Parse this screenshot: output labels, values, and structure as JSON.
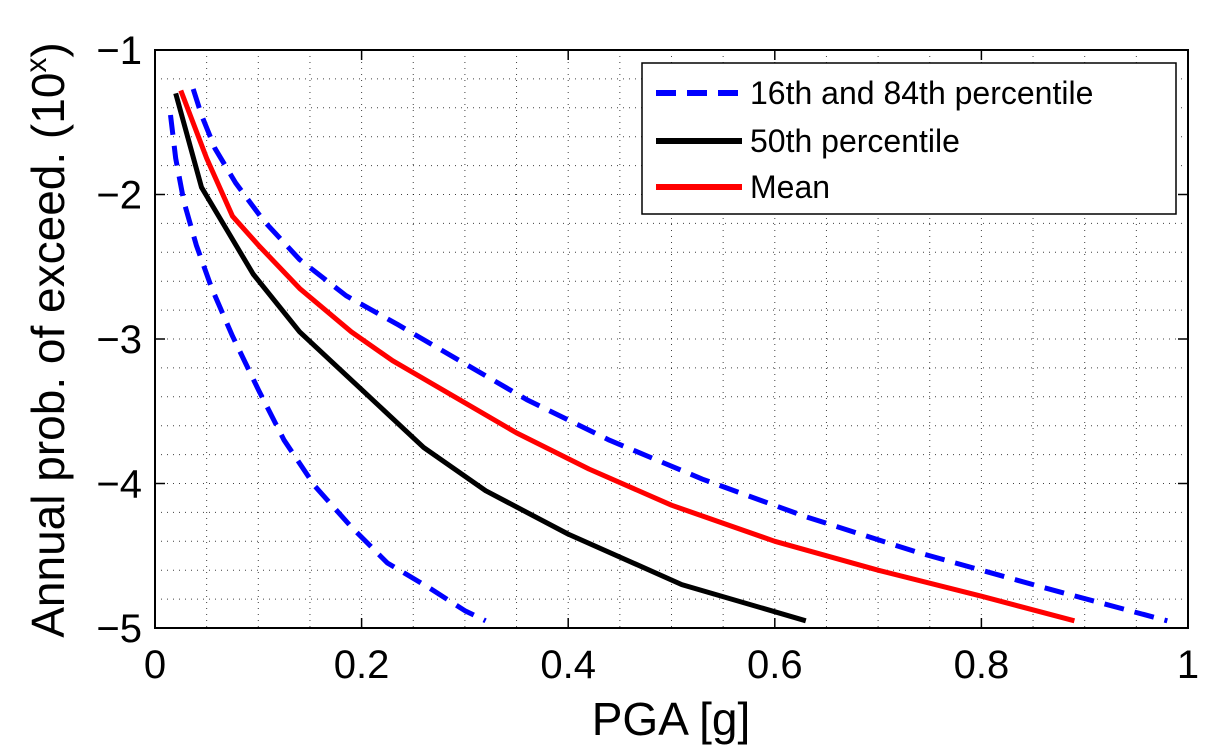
{
  "chart_data": {
    "type": "line",
    "title": "",
    "xlabel": "PGA [g]",
    "ylabel": "Annual prob. of exceed. (10",
    "ylabel_exponent": "x",
    "ylabel_close": ")",
    "xlim": [
      0,
      1
    ],
    "ylim": [
      -5,
      -1
    ],
    "xticks": [
      0,
      0.2,
      0.4,
      0.6,
      0.8,
      1
    ],
    "xtick_labels": [
      "0",
      "0.2",
      "0.4",
      "0.6",
      "0.8",
      "1"
    ],
    "yticks": [
      -5,
      -4,
      -3,
      -2,
      -1
    ],
    "ytick_labels": [
      "−5",
      "−4",
      "−3",
      "−2",
      "−1"
    ],
    "grid": "dotted major and minor",
    "legend_position": "top-right",
    "legend": [
      {
        "label": "16th and 84th percentile",
        "color": "#0000ff",
        "style": "dashed"
      },
      {
        "label": "50th percentile",
        "color": "#000000",
        "style": "solid"
      },
      {
        "label": "Mean",
        "color": "#ff0000",
        "style": "solid"
      }
    ],
    "series": [
      {
        "legend_index": 0,
        "color": "#0000ff",
        "style": "dashed",
        "x": [
          0.037,
          0.045,
          0.058,
          0.078,
          0.105,
          0.14,
          0.185,
          0.235,
          0.295,
          0.36,
          0.44,
          0.53,
          0.63,
          0.74,
          0.86,
          0.98
        ],
        "y": [
          -1.27,
          -1.45,
          -1.68,
          -1.92,
          -2.18,
          -2.45,
          -2.7,
          -2.9,
          -3.15,
          -3.42,
          -3.7,
          -3.97,
          -4.23,
          -4.48,
          -4.72,
          -4.95
        ]
      },
      {
        "legend_index": 0,
        "color": "#0000ff",
        "style": "dashed",
        "x": [
          0.015,
          0.02,
          0.028,
          0.04,
          0.055,
          0.075,
          0.1,
          0.125,
          0.155,
          0.19,
          0.225,
          0.265,
          0.3,
          0.32
        ],
        "y": [
          -1.45,
          -1.75,
          -2.05,
          -2.35,
          -2.65,
          -2.98,
          -3.35,
          -3.7,
          -4.02,
          -4.3,
          -4.55,
          -4.72,
          -4.88,
          -4.95
        ]
      },
      {
        "legend_index": 1,
        "color": "#000000",
        "style": "solid",
        "x": [
          0.02,
          0.045,
          0.07,
          0.095,
          0.14,
          0.2,
          0.26,
          0.32,
          0.4,
          0.51,
          0.63
        ],
        "y": [
          -1.3,
          -1.95,
          -2.25,
          -2.55,
          -2.95,
          -3.35,
          -3.75,
          -4.05,
          -4.35,
          -4.7,
          -4.95
        ]
      },
      {
        "legend_index": 2,
        "color": "#ff0000",
        "style": "solid",
        "x": [
          0.025,
          0.05,
          0.075,
          0.1,
          0.14,
          0.19,
          0.23,
          0.29,
          0.35,
          0.42,
          0.5,
          0.6,
          0.7,
          0.8,
          0.89
        ],
        "y": [
          -1.28,
          -1.75,
          -2.15,
          -2.35,
          -2.65,
          -2.95,
          -3.15,
          -3.4,
          -3.65,
          -3.9,
          -4.15,
          -4.4,
          -4.6,
          -4.78,
          -4.95
        ]
      }
    ]
  }
}
